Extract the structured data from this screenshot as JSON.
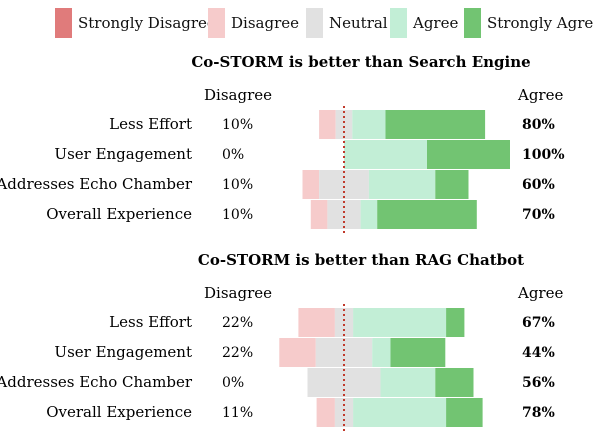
{
  "legend": {
    "items": [
      {
        "label": "Strongly Disagree",
        "color": "#e07b7b"
      },
      {
        "label": "Disagree",
        "color": "#f6cbcb"
      },
      {
        "label": "Neutral",
        "color": "#e1e1e1"
      },
      {
        "label": "Agree",
        "color": "#c2eed6"
      },
      {
        "label": "Strongly Agree",
        "color": "#72c472"
      }
    ]
  },
  "chart_data": [
    {
      "type": "bar",
      "title": "Co-STORM is better than Search Engine",
      "left_header": "Disagree",
      "right_header": "Agree",
      "categories": [
        "Less Effort",
        "User Engagement",
        "Addresses Echo Chamber",
        "Overall Experience"
      ],
      "disagree_labels": [
        "10%",
        "0%",
        "10%",
        "10%"
      ],
      "agree_labels": [
        "80%",
        "100%",
        "60%",
        "70%"
      ],
      "series": [
        {
          "name": "Strongly Disagree",
          "values": [
            0,
            0,
            0,
            0
          ]
        },
        {
          "name": "Disagree",
          "values": [
            10,
            0,
            10,
            10
          ]
        },
        {
          "name": "Neutral",
          "values": [
            10,
            0,
            30,
            20
          ]
        },
        {
          "name": "Agree",
          "values": [
            20,
            50,
            40,
            10
          ]
        },
        {
          "name": "Strongly Agree",
          "values": [
            60,
            50,
            20,
            60
          ]
        }
      ]
    },
    {
      "type": "bar",
      "title": "Co-STORM is better than RAG Chatbot",
      "left_header": "Disagree",
      "right_header": "Agree",
      "categories": [
        "Less Effort",
        "User Engagement",
        "Addresses Echo Chamber",
        "Overall Experience"
      ],
      "disagree_labels": [
        "22%",
        "22%",
        "0%",
        "11%"
      ],
      "agree_labels": [
        "67%",
        "44%",
        "56%",
        "78%"
      ],
      "series": [
        {
          "name": "Strongly Disagree",
          "values": [
            0,
            0,
            0,
            0
          ]
        },
        {
          "name": "Disagree",
          "values": [
            22,
            22,
            0,
            11
          ]
        },
        {
          "name": "Neutral",
          "values": [
            11,
            34,
            44,
            11
          ]
        },
        {
          "name": "Agree",
          "values": [
            56,
            11,
            33,
            56
          ]
        },
        {
          "name": "Strongly Agree",
          "values": [
            11,
            33,
            23,
            22
          ]
        }
      ]
    }
  ]
}
